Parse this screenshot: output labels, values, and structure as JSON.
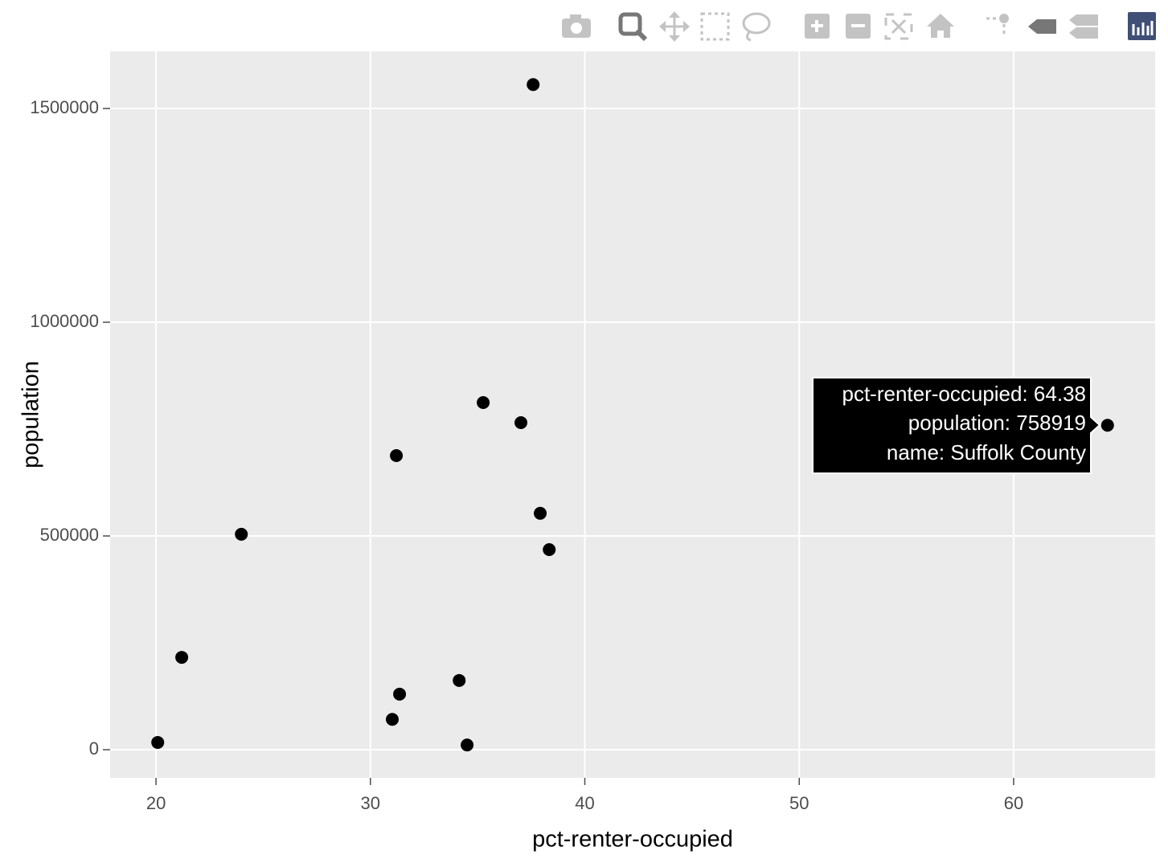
{
  "chart_data": {
    "type": "scatter",
    "x_label": "pct-renter-occupied",
    "y_label": "population",
    "series": [
      {
        "name": "population",
        "color": "#000000",
        "x": [
          37.59,
          35.26,
          37.02,
          64.38,
          31.21,
          37.92,
          23.98,
          38.34,
          21.2,
          34.14,
          31.36,
          31.02,
          20.08,
          34.51
        ],
        "values": [
          1556000,
          812000,
          765000,
          758919,
          688000,
          553000,
          504000,
          468000,
          216000,
          162000,
          130000,
          71000,
          17000,
          11000
        ]
      }
    ],
    "xlim": [
      17.86,
      66.6
    ],
    "xticks": [
      20,
      30,
      40,
      50,
      60
    ],
    "ylim": [
      -65800,
      1633500
    ],
    "yticks": [
      0,
      500000,
      1000000,
      1500000
    ],
    "grid": true,
    "tooltip": [
      "pct-renter-occupied: 64.38",
      "population:  758919",
      "name: Suffolk County"
    ]
  }
}
